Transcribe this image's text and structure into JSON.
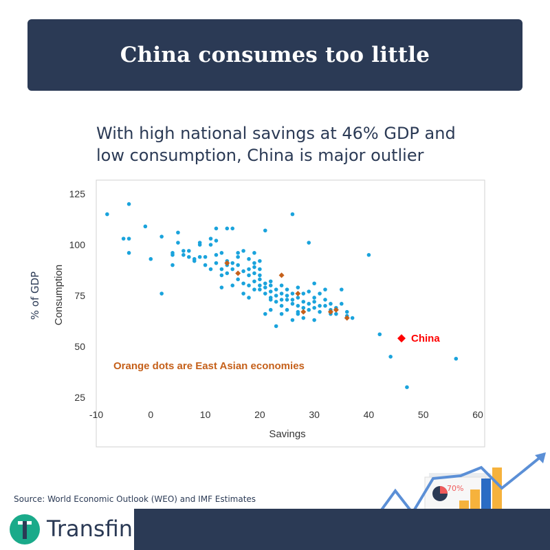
{
  "header": {
    "title": "China consumes too little"
  },
  "subtitle": {
    "line1": "With high national savings at 46% GDP and",
    "line2": "low consumption, China is major outlier"
  },
  "source": "Source: World Economic Outlook (WEO) and IMF Estimates",
  "brand": {
    "name": "Transfin."
  },
  "decor": {
    "badge": "70%"
  },
  "colors": {
    "navy": "#2b3a55",
    "points": "#1aa3dc",
    "east_asia": "#c5601a",
    "china": "#ff0000",
    "logo_teal": "#1aaa8a"
  },
  "chart_data": {
    "type": "scatter",
    "xlabel": "Savings",
    "ylabel": "Consumption",
    "ylabel_outer": "% of GDP",
    "xlim": [
      -10,
      60
    ],
    "ylim": [
      25,
      125
    ],
    "xticks": [
      -10,
      0,
      10,
      20,
      30,
      40,
      50,
      60
    ],
    "yticks": [
      25,
      50,
      75,
      100,
      125
    ],
    "grid": false,
    "annotation": "Orange dots are East Asian economies",
    "highlight": {
      "name": "China",
      "x": 46,
      "y": 54
    },
    "series": [
      {
        "name": "",
        "points": [
          [
            -8,
            115
          ],
          [
            -4,
            120
          ],
          [
            -5,
            103
          ],
          [
            -4,
            103
          ],
          [
            -4,
            96
          ],
          [
            -1,
            109
          ],
          [
            0,
            93
          ],
          [
            2,
            104
          ],
          [
            2,
            76
          ],
          [
            4,
            96
          ],
          [
            4,
            90
          ],
          [
            5,
            106
          ],
          [
            5,
            101
          ],
          [
            4,
            95
          ],
          [
            6,
            97
          ],
          [
            6,
            95
          ],
          [
            7,
            97
          ],
          [
            7,
            94
          ],
          [
            8,
            92
          ],
          [
            9,
            101
          ],
          [
            8,
            93
          ],
          [
            9,
            94
          ],
          [
            10,
            94
          ],
          [
            10,
            90
          ],
          [
            11,
            103
          ],
          [
            11,
            100
          ],
          [
            12,
            102
          ],
          [
            12,
            108
          ],
          [
            12,
            91
          ],
          [
            11,
            88
          ],
          [
            12,
            95
          ],
          [
            13,
            96
          ],
          [
            13,
            88
          ],
          [
            14,
            108
          ],
          [
            14,
            90
          ],
          [
            15,
            91
          ],
          [
            15,
            108
          ],
          [
            15,
            88
          ],
          [
            16,
            94
          ],
          [
            16,
            90
          ],
          [
            16,
            83
          ],
          [
            17,
            97
          ],
          [
            17,
            87
          ],
          [
            17,
            81
          ],
          [
            18,
            93
          ],
          [
            18,
            88
          ],
          [
            18,
            85
          ],
          [
            18,
            80
          ],
          [
            19,
            91
          ],
          [
            19,
            89
          ],
          [
            19,
            86
          ],
          [
            19,
            82
          ],
          [
            19,
            78
          ],
          [
            20,
            92
          ],
          [
            20,
            88
          ],
          [
            20,
            85
          ],
          [
            20,
            80
          ],
          [
            20,
            78
          ],
          [
            21,
            107
          ],
          [
            21,
            81
          ],
          [
            21,
            79
          ],
          [
            21,
            76
          ],
          [
            22,
            82
          ],
          [
            22,
            77
          ],
          [
            22,
            73
          ],
          [
            23,
            78
          ],
          [
            23,
            75
          ],
          [
            23,
            72
          ],
          [
            23,
            60
          ],
          [
            24,
            80
          ],
          [
            24,
            76
          ],
          [
            24,
            73
          ],
          [
            24,
            70
          ],
          [
            25,
            78
          ],
          [
            25,
            75
          ],
          [
            25,
            73
          ],
          [
            26,
            76
          ],
          [
            26,
            73
          ],
          [
            26,
            71
          ],
          [
            26,
            115
          ],
          [
            27,
            79
          ],
          [
            27,
            74
          ],
          [
            27,
            70
          ],
          [
            28,
            76
          ],
          [
            28,
            72
          ],
          [
            28,
            69
          ],
          [
            28,
            64
          ],
          [
            29,
            77
          ],
          [
            29,
            71
          ],
          [
            29,
            101
          ],
          [
            30,
            81
          ],
          [
            30,
            72
          ],
          [
            30,
            69
          ],
          [
            30,
            63
          ],
          [
            31,
            76
          ],
          [
            31,
            70
          ],
          [
            32,
            78
          ],
          [
            32,
            73
          ],
          [
            32,
            70
          ],
          [
            33,
            71
          ],
          [
            33,
            68
          ],
          [
            34,
            69
          ],
          [
            34,
            66
          ],
          [
            35,
            78
          ],
          [
            35,
            71
          ],
          [
            36,
            67
          ],
          [
            36,
            65
          ],
          [
            37,
            64
          ],
          [
            40,
            95
          ],
          [
            42,
            56
          ],
          [
            44,
            45
          ],
          [
            47,
            30
          ],
          [
            56,
            44
          ],
          [
            13,
            85
          ],
          [
            13,
            79
          ],
          [
            14,
            86
          ],
          [
            15,
            80
          ],
          [
            17,
            76
          ],
          [
            18,
            74
          ],
          [
            21,
            66
          ],
          [
            22,
            68
          ],
          [
            24,
            66
          ],
          [
            25,
            68
          ],
          [
            27,
            67
          ],
          [
            28,
            67
          ],
          [
            29,
            68
          ],
          [
            31,
            67
          ],
          [
            33,
            66
          ],
          [
            30,
            74
          ],
          [
            22,
            74
          ],
          [
            19,
            96
          ],
          [
            20,
            83
          ],
          [
            14,
            92
          ],
          [
            16,
            96
          ],
          [
            9,
            100
          ],
          [
            22,
            80
          ],
          [
            27,
            66
          ],
          [
            26,
            63
          ]
        ]
      },
      {
        "name": "East Asian economies",
        "points": [
          [
            14,
            91
          ],
          [
            16,
            86
          ],
          [
            24,
            85
          ],
          [
            27,
            76
          ],
          [
            28,
            67
          ],
          [
            33,
            67
          ],
          [
            34,
            68
          ],
          [
            36,
            64
          ]
        ]
      }
    ]
  }
}
